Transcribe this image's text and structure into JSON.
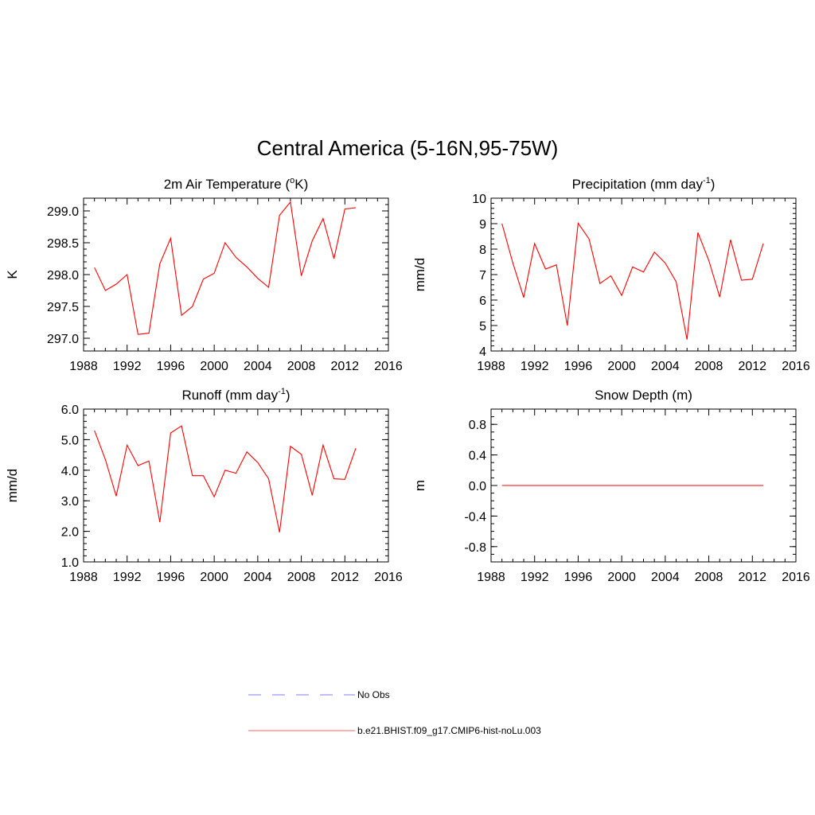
{
  "main_title": "Central America (5-16N,95-75W)",
  "chart_data": [
    {
      "type": "line",
      "title": "2m Air Temperature (",
      "title_sup": "o",
      "title_after": "K)",
      "ylabel": "K",
      "xlim": [
        1988,
        2016
      ],
      "xticks": [
        "1988",
        "1992",
        "1996",
        "2000",
        "2004",
        "2008",
        "2012",
        "2016"
      ],
      "ylim": [
        296.8,
        299.2
      ],
      "yticks": [
        "297.0",
        "297.5",
        "298.0",
        "298.5",
        "299.0"
      ],
      "ytick_values": [
        297.0,
        297.5,
        298.0,
        298.5,
        299.0
      ],
      "y_minor_step": 0.1,
      "x": [
        1989,
        1990,
        1991,
        1992,
        1993,
        1994,
        1995,
        1996,
        1997,
        1998,
        1999,
        2000,
        2001,
        2002,
        2003,
        2004,
        2005,
        2006,
        2007,
        2008,
        2009,
        2010,
        2011,
        2012,
        2013
      ],
      "series": [
        {
          "values": [
            298.11,
            297.75,
            297.85,
            298.0,
            297.06,
            297.08,
            298.17,
            298.57,
            297.36,
            297.5,
            297.93,
            298.02,
            298.5,
            298.27,
            298.12,
            297.94,
            297.8,
            298.93,
            299.14,
            297.98,
            298.53,
            298.88,
            298.25,
            299.03,
            299.05
          ],
          "color": "#ff0000"
        }
      ]
    },
    {
      "type": "line",
      "title": "Precipitation (mm day",
      "title_sup": "-1",
      "title_after": ")",
      "ylabel": "mm/d",
      "xlim": [
        1988,
        2016
      ],
      "xticks": [
        "1988",
        "1992",
        "1996",
        "2000",
        "2004",
        "2008",
        "2012",
        "2016"
      ],
      "ylim": [
        4,
        10
      ],
      "yticks": [
        "4",
        "5",
        "6",
        "7",
        "8",
        "9",
        "10"
      ],
      "ytick_values": [
        4,
        5,
        6,
        7,
        8,
        9,
        10
      ],
      "y_minor_step": 0.2,
      "x": [
        1989,
        1990,
        1991,
        1992,
        1993,
        1994,
        1995,
        1996,
        1997,
        1998,
        1999,
        2000,
        2001,
        2002,
        2003,
        2004,
        2005,
        2006,
        2007,
        2008,
        2009,
        2010,
        2011,
        2012,
        2013
      ],
      "series": [
        {
          "values": [
            9.0,
            7.45,
            6.1,
            8.22,
            7.22,
            7.38,
            5.0,
            9.02,
            8.4,
            6.65,
            6.95,
            6.18,
            7.3,
            7.1,
            7.88,
            7.45,
            6.72,
            4.45,
            8.65,
            7.55,
            6.12,
            8.37,
            6.78,
            6.82,
            8.22
          ],
          "color": "#ff0000"
        }
      ]
    },
    {
      "type": "line",
      "title": "Runoff (mm day",
      "title_sup": "-1",
      "title_after": ")",
      "ylabel": "mm/d",
      "xlim": [
        1988,
        2016
      ],
      "xticks": [
        "1988",
        "1992",
        "1996",
        "2000",
        "2004",
        "2008",
        "2012",
        "2016"
      ],
      "ylim": [
        1.0,
        6.0
      ],
      "yticks": [
        "1.0",
        "2.0",
        "3.0",
        "4.0",
        "5.0",
        "6.0"
      ],
      "ytick_values": [
        1.0,
        2.0,
        3.0,
        4.0,
        5.0,
        6.0
      ],
      "y_minor_step": 0.2,
      "x": [
        1989,
        1990,
        1991,
        1992,
        1993,
        1994,
        1995,
        1996,
        1997,
        1998,
        1999,
        2000,
        2001,
        2002,
        2003,
        2004,
        2005,
        2006,
        2007,
        2008,
        2009,
        2010,
        2011,
        2012,
        2013
      ],
      "series": [
        {
          "values": [
            5.3,
            4.35,
            3.15,
            4.82,
            4.15,
            4.3,
            2.3,
            5.22,
            5.45,
            3.82,
            3.82,
            3.13,
            4.0,
            3.9,
            4.6,
            4.25,
            3.72,
            1.97,
            4.78,
            4.52,
            3.18,
            4.82,
            3.72,
            3.7,
            4.72
          ],
          "color": "#ff0000"
        }
      ]
    },
    {
      "type": "line",
      "title": "Snow Depth (m)",
      "title_sup": "",
      "title_after": "",
      "ylabel": "m",
      "xlim": [
        1988,
        2016
      ],
      "xticks": [
        "1988",
        "1992",
        "1996",
        "2000",
        "2004",
        "2008",
        "2012",
        "2016"
      ],
      "ylim": [
        -1.0,
        1.0
      ],
      "yticks": [
        "-0.8",
        "-0.4",
        "0.0",
        "0.4",
        "0.8"
      ],
      "ytick_values": [
        -0.8,
        -0.4,
        0.0,
        0.4,
        0.8
      ],
      "y_minor_step": 0.1,
      "x": [
        1989,
        1990,
        1991,
        1992,
        1993,
        1994,
        1995,
        1996,
        1997,
        1998,
        1999,
        2000,
        2001,
        2002,
        2003,
        2004,
        2005,
        2006,
        2007,
        2008,
        2009,
        2010,
        2011,
        2012,
        2013
      ],
      "series": [
        {
          "values": [
            0,
            0,
            0,
            0,
            0,
            0,
            0,
            0,
            0,
            0,
            0,
            0,
            0,
            0,
            0,
            0,
            0,
            0,
            0,
            0,
            0,
            0,
            0,
            0,
            0
          ],
          "color": "#ff0000"
        }
      ]
    }
  ],
  "legend": {
    "placement": "bottom-center",
    "items": [
      {
        "label": "No Obs",
        "color": "#9999ff",
        "style": "dashed"
      },
      {
        "label": "b.e21.BHIST.f09_g17.CMIP6-hist-noLu.003",
        "color": "#ff8080",
        "style": "solid"
      }
    ]
  }
}
